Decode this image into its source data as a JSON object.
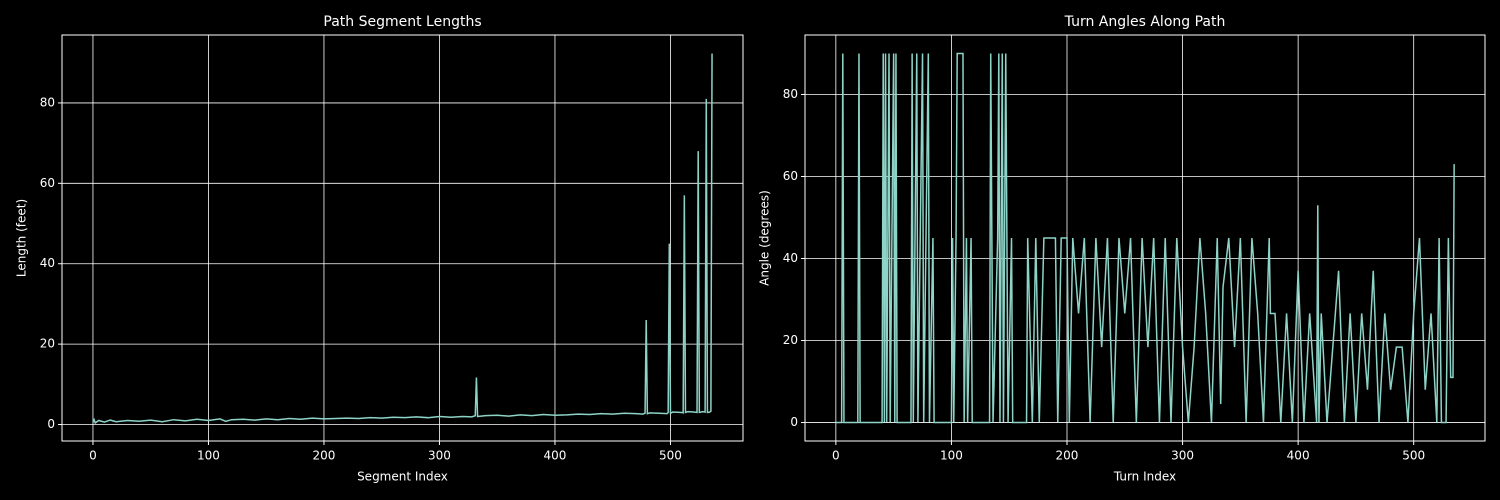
{
  "chart_data": [
    {
      "type": "line",
      "title": "Path Segment Lengths",
      "xlabel": "Segment Index",
      "ylabel": "Length (feet)",
      "x": [
        0,
        1,
        2,
        5,
        10,
        15,
        20,
        30,
        40,
        50,
        60,
        70,
        80,
        90,
        100,
        110,
        115,
        120,
        130,
        140,
        150,
        160,
        170,
        180,
        190,
        200,
        210,
        220,
        230,
        240,
        250,
        260,
        270,
        280,
        290,
        300,
        310,
        320,
        328,
        331,
        332,
        333,
        336,
        340,
        350,
        360,
        370,
        380,
        390,
        400,
        410,
        420,
        430,
        440,
        450,
        460,
        470,
        476,
        478,
        479,
        480,
        482,
        490,
        497,
        498,
        499,
        500,
        502,
        510,
        511,
        512,
        513,
        515,
        520,
        523,
        524,
        525,
        528,
        530,
        531,
        532,
        534,
        535,
        536
      ],
      "series": [
        {
          "name": "Length (feet)",
          "color": "#8dd3c7",
          "values": [
            0.5,
            1.2,
            0.4,
            1.0,
            0.6,
            1.1,
            0.7,
            1.0,
            0.8,
            1.1,
            0.7,
            1.2,
            0.9,
            1.3,
            1.0,
            1.4,
            0.8,
            1.2,
            1.3,
            1.1,
            1.4,
            1.2,
            1.5,
            1.3,
            1.6,
            1.4,
            1.5,
            1.6,
            1.5,
            1.7,
            1.6,
            1.8,
            1.7,
            1.9,
            1.7,
            2.0,
            1.8,
            2.0,
            1.9,
            2.2,
            11.7,
            2.0,
            2.1,
            2.2,
            2.3,
            2.1,
            2.4,
            2.2,
            2.5,
            2.3,
            2.4,
            2.6,
            2.5,
            2.7,
            2.6,
            2.8,
            2.7,
            2.6,
            2.8,
            26.0,
            2.7,
            2.9,
            2.8,
            2.7,
            3.0,
            45.0,
            2.8,
            3.1,
            3.0,
            2.9,
            57.0,
            3.0,
            3.2,
            3.1,
            3.0,
            68.0,
            3.0,
            3.2,
            3.1,
            81.0,
            3.0,
            3.1,
            3.3,
            92.3
          ]
        }
      ],
      "xlim": [
        -26.8,
        562.8
      ],
      "ylim": [
        -4.1,
        96.9
      ],
      "xticks": [
        0,
        100,
        200,
        300,
        400,
        500
      ],
      "yticks": [
        0,
        20,
        40,
        60,
        80
      ],
      "grid": true
    },
    {
      "type": "line",
      "title": "Turn Angles Along Path",
      "xlabel": "Turn Index",
      "ylabel": "Angle (degrees)",
      "x": [
        0,
        5,
        6,
        7,
        19,
        20,
        21,
        40,
        41,
        42,
        43,
        44,
        46,
        47,
        50,
        51,
        52,
        53,
        65,
        66,
        67,
        70,
        71,
        75,
        76,
        80,
        81,
        84,
        85,
        100,
        101,
        102,
        104,
        105,
        110,
        111,
        113,
        114,
        117,
        118,
        133,
        134,
        135,
        136,
        140,
        141,
        142,
        144,
        145,
        147,
        148,
        149,
        152,
        153,
        165,
        166,
        170,
        173,
        176,
        180,
        190,
        192,
        195,
        200,
        202,
        205,
        210,
        215,
        220,
        225,
        230,
        235,
        240,
        245,
        250,
        255,
        260,
        265,
        270,
        275,
        280,
        285,
        290,
        295,
        300,
        305,
        310,
        315,
        320,
        325,
        330,
        333,
        335,
        340,
        345,
        350,
        355,
        360,
        365,
        370,
        375,
        376,
        380,
        385,
        390,
        395,
        400,
        405,
        410,
        416,
        417,
        418,
        420,
        425,
        430,
        435,
        440,
        445,
        450,
        455,
        460,
        465,
        470,
        475,
        480,
        485,
        490,
        495,
        500,
        505,
        510,
        515,
        520,
        522,
        524,
        528,
        530,
        532,
        534,
        535
      ],
      "series": [
        {
          "name": "Angle (degrees)",
          "color": "#8dd3c7",
          "values": [
            0,
            0,
            90,
            0,
            0,
            90,
            0,
            0,
            90,
            0,
            90,
            0,
            90,
            0,
            90,
            0,
            90,
            0,
            0,
            90,
            0,
            90,
            0,
            90,
            0,
            90,
            0,
            45,
            0,
            0,
            45,
            0,
            45,
            90,
            90,
            0,
            45,
            0,
            45,
            0,
            0,
            90,
            45,
            0,
            45,
            90,
            0,
            90,
            0,
            90,
            45,
            0,
            45,
            0,
            0,
            45,
            0,
            45,
            0,
            45,
            45,
            0,
            45,
            45,
            0,
            45,
            26.6,
            45,
            0,
            45,
            18.4,
            45,
            0,
            45,
            26.6,
            45,
            0,
            45,
            18.4,
            45,
            0,
            45,
            0,
            45,
            18.4,
            0,
            18.4,
            45,
            26.6,
            0,
            45,
            4.5,
            33,
            45,
            18.4,
            45,
            0,
            45,
            26.6,
            0,
            45,
            26.6,
            26.6,
            0,
            26.6,
            0,
            37,
            0,
            26.6,
            0,
            53,
            0,
            26.6,
            0,
            18.4,
            37,
            0,
            26.6,
            0,
            26.6,
            8,
            37,
            0,
            26.6,
            8,
            18.4,
            18.4,
            0,
            26.6,
            45,
            8,
            26.6,
            0,
            45,
            0,
            0,
            45,
            11,
            11,
            63
          ]
        }
      ],
      "xlim": [
        -26.7,
        561.7
      ],
      "ylim": [
        -4.5,
        94.5
      ],
      "xticks": [
        0,
        100,
        200,
        300,
        400,
        500
      ],
      "yticks": [
        0,
        20,
        40,
        60,
        80
      ],
      "grid": true
    }
  ]
}
